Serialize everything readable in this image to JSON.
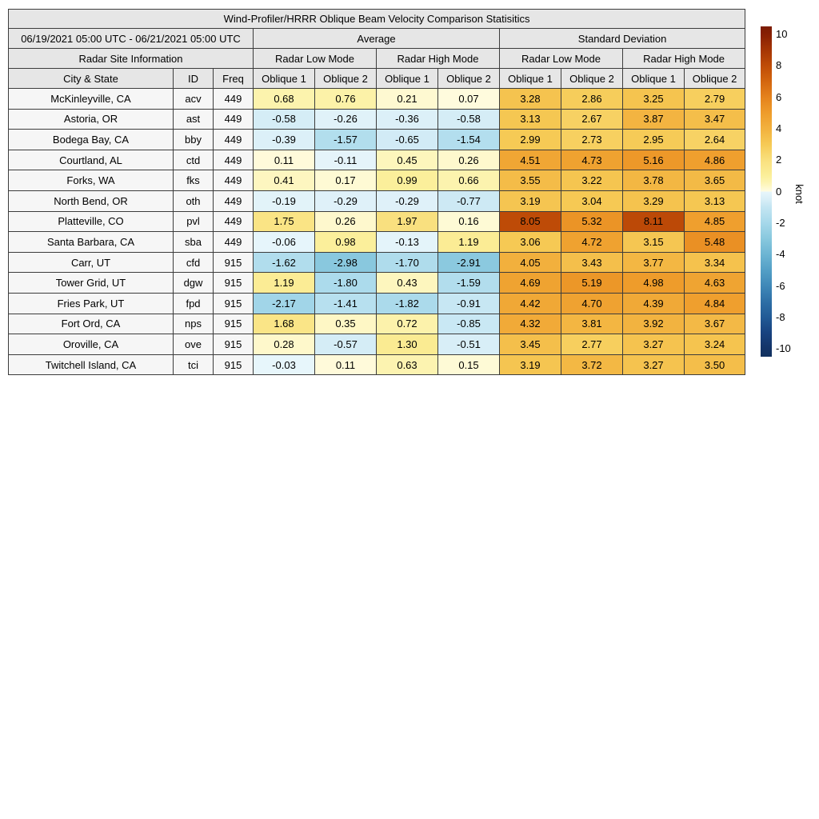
{
  "chart_data": {
    "type": "table",
    "title": "Wind-Profiler/HRRR Oblique Beam Velocity Comparison Statisitics",
    "period": "06/19/2021 05:00 UTC - 06/21/2021 05:00 UTC",
    "group_headers": {
      "average": "Average",
      "std": "Standard Deviation"
    },
    "site_info_header": "Radar Site Information",
    "mode_headers": [
      "Radar Low Mode",
      "Radar High Mode",
      "Radar Low Mode",
      "Radar High Mode"
    ],
    "column_headers": [
      "City & State",
      "ID",
      "Freq",
      "Oblique 1",
      "Oblique 2",
      "Oblique 1",
      "Oblique 2",
      "Oblique 1",
      "Oblique 2",
      "Oblique 1",
      "Oblique 2"
    ],
    "rows": [
      {
        "city": "McKinleyville, CA",
        "id": "acv",
        "freq": "449",
        "values": [
          "0.68",
          "0.76",
          "0.21",
          "0.07",
          "3.28",
          "2.86",
          "3.25",
          "2.79"
        ]
      },
      {
        "city": "Astoria, OR",
        "id": "ast",
        "freq": "449",
        "values": [
          "-0.58",
          "-0.26",
          "-0.36",
          "-0.58",
          "3.13",
          "2.67",
          "3.87",
          "3.47"
        ]
      },
      {
        "city": "Bodega Bay, CA",
        "id": "bby",
        "freq": "449",
        "values": [
          "-0.39",
          "-1.57",
          "-0.65",
          "-1.54",
          "2.99",
          "2.73",
          "2.95",
          "2.64"
        ]
      },
      {
        "city": "Courtland, AL",
        "id": "ctd",
        "freq": "449",
        "values": [
          "0.11",
          "-0.11",
          "0.45",
          "0.26",
          "4.51",
          "4.73",
          "5.16",
          "4.86"
        ]
      },
      {
        "city": "Forks, WA",
        "id": "fks",
        "freq": "449",
        "values": [
          "0.41",
          "0.17",
          "0.99",
          "0.66",
          "3.55",
          "3.22",
          "3.78",
          "3.65"
        ]
      },
      {
        "city": "North Bend, OR",
        "id": "oth",
        "freq": "449",
        "values": [
          "-0.19",
          "-0.29",
          "-0.29",
          "-0.77",
          "3.19",
          "3.04",
          "3.29",
          "3.13"
        ]
      },
      {
        "city": "Platteville, CO",
        "id": "pvl",
        "freq": "449",
        "values": [
          "1.75",
          "0.26",
          "1.97",
          "0.16",
          "8.05",
          "5.32",
          "8.11",
          "4.85"
        ]
      },
      {
        "city": "Santa Barbara, CA",
        "id": "sba",
        "freq": "449",
        "values": [
          "-0.06",
          "0.98",
          "-0.13",
          "1.19",
          "3.06",
          "4.72",
          "3.15",
          "5.48"
        ]
      },
      {
        "city": "Carr, UT",
        "id": "cfd",
        "freq": "915",
        "values": [
          "-1.62",
          "-2.98",
          "-1.70",
          "-2.91",
          "4.05",
          "3.43",
          "3.77",
          "3.34"
        ]
      },
      {
        "city": "Tower Grid, UT",
        "id": "dgw",
        "freq": "915",
        "values": [
          "1.19",
          "-1.80",
          "0.43",
          "-1.59",
          "4.69",
          "5.19",
          "4.98",
          "4.63"
        ]
      },
      {
        "city": "Fries Park, UT",
        "id": "fpd",
        "freq": "915",
        "values": [
          "-2.17",
          "-1.41",
          "-1.82",
          "-0.91",
          "4.42",
          "4.70",
          "4.39",
          "4.84"
        ]
      },
      {
        "city": "Fort Ord, CA",
        "id": "nps",
        "freq": "915",
        "values": [
          "1.68",
          "0.35",
          "0.72",
          "-0.85",
          "4.32",
          "3.81",
          "3.92",
          "3.67"
        ]
      },
      {
        "city": "Oroville, CA",
        "id": "ove",
        "freq": "915",
        "values": [
          "0.28",
          "-0.57",
          "1.30",
          "-0.51",
          "3.45",
          "2.77",
          "3.27",
          "3.24"
        ]
      },
      {
        "city": "Twitchell Island, CA",
        "id": "tci",
        "freq": "915",
        "values": [
          "-0.03",
          "0.11",
          "0.63",
          "0.15",
          "3.19",
          "3.72",
          "3.27",
          "3.50"
        ]
      }
    ],
    "colorbar": {
      "label": "knot",
      "ticks": [
        10,
        8,
        6,
        4,
        2,
        0,
        -2,
        -4,
        -6,
        -8,
        -10
      ],
      "vmin": -10.5,
      "vmax": 10.5,
      "colormap_anchors": [
        [
          -10.5,
          "#11315f"
        ],
        [
          -10,
          "#143467"
        ],
        [
          -9,
          "#18427f"
        ],
        [
          -8,
          "#215a96"
        ],
        [
          -7,
          "#2e6fa6"
        ],
        [
          -6,
          "#3f88b8"
        ],
        [
          -5,
          "#539fc6"
        ],
        [
          -4,
          "#6cb5d3"
        ],
        [
          -3,
          "#88c8de"
        ],
        [
          -2,
          "#a6d8ea"
        ],
        [
          -1,
          "#c3e5f2"
        ],
        [
          -0.5,
          "#d8eef7"
        ],
        [
          -0.001,
          "#e8f6fb"
        ],
        [
          0.001,
          "#fffce3"
        ],
        [
          0.5,
          "#fdf5b8"
        ],
        [
          1,
          "#fbef9a"
        ],
        [
          2,
          "#f9e07e"
        ],
        [
          3,
          "#f6ca55"
        ],
        [
          4,
          "#f2b13e"
        ],
        [
          5,
          "#ee9c2b"
        ],
        [
          6,
          "#e5821c"
        ],
        [
          7,
          "#d3660f"
        ],
        [
          8,
          "#bf4c07"
        ],
        [
          9,
          "#a53504"
        ],
        [
          10,
          "#871f03"
        ],
        [
          10.5,
          "#7b1c03"
        ]
      ]
    },
    "style_colors": {
      "header_bg": "#e6e6e6",
      "site_cell_bg": "#f6f6f6",
      "border": "#3c3c3c"
    }
  }
}
